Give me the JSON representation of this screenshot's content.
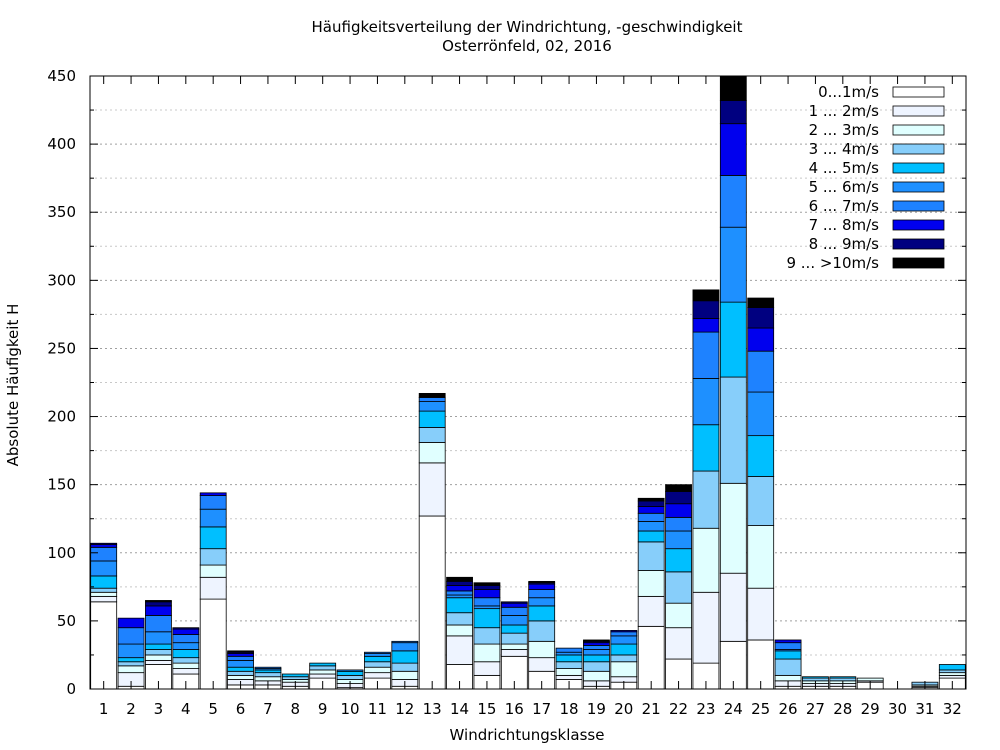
{
  "chart_data": {
    "type": "bar",
    "stacked": true,
    "title": "Häufigkeitsverteilung der Windrichtung, -geschwindigkeit",
    "subtitle": "Osterrönfeld, 02, 2016",
    "xlabel": "Windrichtungsklasse",
    "ylabel": "Absolute Häufigkeit H",
    "ylim": [
      0,
      450
    ],
    "yticks": [
      0,
      50,
      100,
      150,
      200,
      250,
      300,
      350,
      400,
      450
    ],
    "grid": "horizontal dotted",
    "legend_position": "top-right",
    "categories": [
      "1",
      "2",
      "3",
      "4",
      "5",
      "6",
      "7",
      "8",
      "9",
      "10",
      "11",
      "12",
      "13",
      "14",
      "15",
      "16",
      "17",
      "18",
      "19",
      "20",
      "21",
      "22",
      "23",
      "24",
      "25",
      "26",
      "27",
      "28",
      "29",
      "30",
      "31",
      "32"
    ],
    "series": [
      {
        "name": "0...1m/s",
        "color": "#ffffff",
        "values": [
          64,
          2,
          18,
          11,
          66,
          3,
          3,
          2,
          8,
          1,
          8,
          2,
          127,
          18,
          10,
          24,
          13,
          7,
          2,
          5,
          46,
          22,
          19,
          35,
          36,
          2,
          2,
          2,
          5,
          0,
          1,
          8
        ]
      },
      {
        "name": "1 ... 2m/s",
        "color": "#eef4ff",
        "values": [
          4,
          10,
          3,
          4,
          16,
          4,
          3,
          3,
          3,
          3,
          4,
          5,
          39,
          21,
          10,
          5,
          10,
          3,
          4,
          4,
          22,
          23,
          52,
          50,
          38,
          4,
          2,
          2,
          1,
          0,
          1,
          2
        ]
      },
      {
        "name": "2 ... 3m/s",
        "color": "#e0ffff",
        "values": [
          3,
          5,
          4,
          4,
          9,
          3,
          3,
          2,
          3,
          3,
          4,
          6,
          15,
          8,
          13,
          4,
          12,
          5,
          7,
          11,
          19,
          18,
          47,
          66,
          46,
          4,
          2,
          2,
          2,
          0,
          1,
          2
        ]
      },
      {
        "name": "3 ... 4m/s",
        "color": "#87cefa",
        "values": [
          3,
          3,
          4,
          4,
          12,
          3,
          3,
          2,
          3,
          3,
          4,
          6,
          11,
          9,
          12,
          8,
          15,
          5,
          7,
          5,
          21,
          23,
          42,
          78,
          36,
          12,
          2,
          2,
          0,
          0,
          2,
          2
        ]
      },
      {
        "name": "4 ... 5m/s",
        "color": "#00bfff",
        "values": [
          9,
          3,
          4,
          6,
          16,
          3,
          2,
          2,
          2,
          3,
          4,
          9,
          12,
          11,
          14,
          6,
          11,
          5,
          5,
          8,
          8,
          17,
          34,
          55,
          30,
          6,
          1,
          1,
          0,
          0,
          0,
          4
        ]
      },
      {
        "name": "5 ... 6m/s",
        "color": "#1e90ff",
        "values": [
          11,
          10,
          9,
          5,
          13,
          5,
          1,
          0,
          0,
          1,
          2,
          6,
          7,
          2,
          2,
          7,
          6,
          2,
          4,
          6,
          7,
          13,
          34,
          55,
          32,
          1,
          0,
          0,
          0,
          0,
          0,
          0
        ]
      },
      {
        "name": "6 ... 7m/s",
        "color": "#1e82ff",
        "values": [
          10,
          12,
          12,
          6,
          10,
          3,
          1,
          0,
          0,
          0,
          1,
          1,
          3,
          3,
          6,
          6,
          6,
          3,
          3,
          3,
          6,
          10,
          34,
          38,
          30,
          5,
          0,
          0,
          0,
          0,
          0,
          0
        ]
      },
      {
        "name": "7 ... 8m/s",
        "color": "#0000ee",
        "values": [
          2,
          7,
          7,
          4,
          2,
          2,
          0,
          0,
          0,
          0,
          0,
          0,
          0,
          4,
          6,
          3,
          4,
          0,
          2,
          1,
          5,
          10,
          10,
          38,
          17,
          2,
          0,
          0,
          0,
          0,
          0,
          0
        ]
      },
      {
        "name": "8 ... 9m/s",
        "color": "#000080",
        "values": [
          1,
          0,
          3,
          1,
          0,
          1,
          0,
          0,
          0,
          0,
          0,
          0,
          0,
          3,
          3,
          1,
          1,
          0,
          1,
          0,
          4,
          9,
          13,
          17,
          15,
          0,
          0,
          0,
          0,
          0,
          0,
          0
        ]
      },
      {
        "name": "9 ... >10m/s",
        "color": "#000000",
        "values": [
          0,
          0,
          1,
          0,
          0,
          1,
          0,
          0,
          0,
          0,
          0,
          0,
          3,
          3,
          2,
          0,
          1,
          0,
          1,
          0,
          2,
          5,
          8,
          18,
          7,
          0,
          0,
          0,
          0,
          0,
          0,
          0
        ]
      }
    ]
  }
}
